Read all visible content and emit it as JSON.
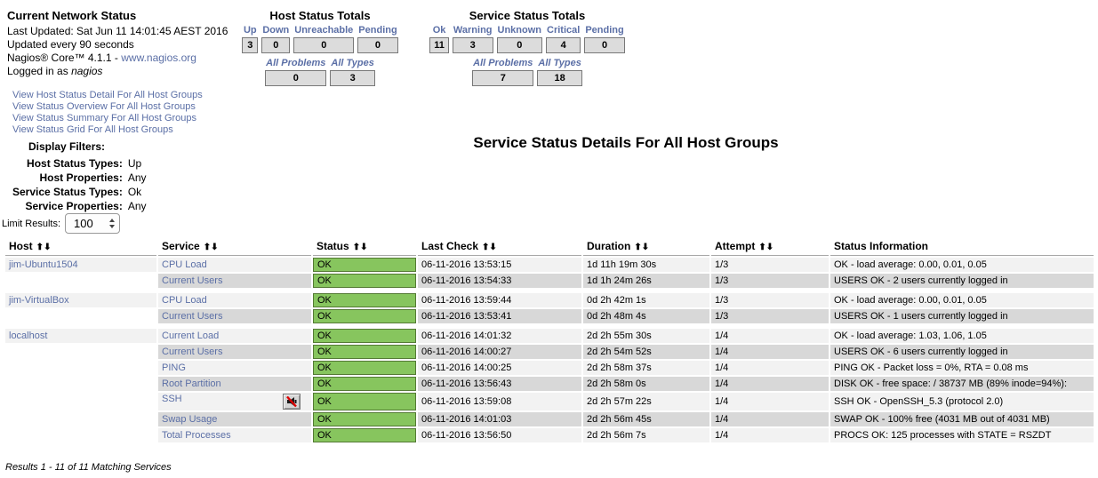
{
  "colors": {
    "link_blue": "#5b6fa6",
    "ok_green": "#87c55e",
    "warning_yellow": "#ffff00",
    "critical_red": "#f28a8a",
    "pending_gray": "#dcdcdc",
    "problems_blue": "#aac8f7",
    "stripe_odd": "#f2f2f2",
    "stripe_even": "#d8d8d8"
  },
  "icons": {
    "sort_up": "⬆",
    "sort_down": "⬇",
    "notifications_disabled": "red slash over speaker"
  },
  "network_status": {
    "title": "Current Network Status",
    "last_updated": "Last Updated: Sat Jun 11 14:01:45 AEST 2016",
    "update_interval": "Updated every 90 seconds",
    "version_prefix": "Nagios® Core™ 4.1.1 - ",
    "version_link": "www.nagios.org",
    "logged_in_prefix": "Logged in as ",
    "logged_in_user": "nagios",
    "links": [
      "View Host Status Detail For All Host Groups",
      "View Status Overview For All Host Groups",
      "View Status Summary For All Host Groups",
      "View Status Grid For All Host Groups"
    ]
  },
  "host_totals": {
    "title": "Host Status Totals",
    "columns": [
      {
        "label": "Up",
        "value": "3",
        "state": "ok"
      },
      {
        "label": "Down",
        "value": "0",
        "state": "neutral"
      },
      {
        "label": "Unreachable",
        "value": "0",
        "state": "neutral"
      },
      {
        "label": "Pending",
        "value": "0",
        "state": "neutral"
      }
    ],
    "summary": {
      "problems_label": "All Problems",
      "types_label": "All Types",
      "problems_value": "0",
      "problems_state": "neutral",
      "types_value": "3",
      "types_state": "neutral"
    }
  },
  "service_totals": {
    "title": "Service Status Totals",
    "columns": [
      {
        "label": "Ok",
        "value": "11",
        "state": "ok"
      },
      {
        "label": "Warning",
        "value": "3",
        "state": "warning"
      },
      {
        "label": "Unknown",
        "value": "0",
        "state": "neutral"
      },
      {
        "label": "Critical",
        "value": "4",
        "state": "critical"
      },
      {
        "label": "Pending",
        "value": "0",
        "state": "neutral"
      }
    ],
    "summary": {
      "problems_label": "All Problems",
      "types_label": "All Types",
      "problems_value": "7",
      "problems_state": "problems",
      "types_value": "18",
      "types_state": "neutral"
    }
  },
  "display_filters": {
    "title": "Display Filters:",
    "rows": [
      {
        "label": "Host Status Types:",
        "value": "Up"
      },
      {
        "label": "Host Properties:",
        "value": "Any"
      },
      {
        "label": "Service Status Types:",
        "value": "Ok"
      },
      {
        "label": "Service Properties:",
        "value": "Any"
      }
    ]
  },
  "limit_results": {
    "label": "Limit Results:",
    "value": "100"
  },
  "page_title": "Service Status Details For All Host Groups",
  "service_table": {
    "headers": [
      {
        "label": "Host",
        "sortable": true
      },
      {
        "label": "Service",
        "sortable": true
      },
      {
        "label": "Status",
        "sortable": true
      },
      {
        "label": "Last Check",
        "sortable": true
      },
      {
        "label": "Duration",
        "sortable": true
      },
      {
        "label": "Attempt",
        "sortable": true
      },
      {
        "label": "Status Information",
        "sortable": false
      }
    ],
    "groups": [
      {
        "host": "jim-Ubuntu1504",
        "rows": [
          {
            "service": "CPU Load",
            "status": "OK",
            "last_check": "06-11-2016 13:53:15",
            "duration": "1d 11h 19m 30s",
            "attempt": "1/3",
            "info": "OK - load average: 0.00, 0.01, 0.05"
          },
          {
            "service": "Current Users",
            "status": "OK",
            "last_check": "06-11-2016 13:54:33",
            "duration": "1d 1h 24m 26s",
            "attempt": "1/3",
            "info": "USERS OK - 2 users currently logged in"
          }
        ]
      },
      {
        "host": "jim-VirtualBox",
        "rows": [
          {
            "service": "CPU Load",
            "status": "OK",
            "last_check": "06-11-2016 13:59:44",
            "duration": "0d 2h 42m 1s",
            "attempt": "1/3",
            "info": "OK - load average: 0.00, 0.01, 0.05"
          },
          {
            "service": "Current Users",
            "status": "OK",
            "last_check": "06-11-2016 13:53:41",
            "duration": "0d 2h 48m 4s",
            "attempt": "1/3",
            "info": "USERS OK - 1 users currently logged in"
          }
        ]
      },
      {
        "host": "localhost",
        "rows": [
          {
            "service": "Current Load",
            "status": "OK",
            "last_check": "06-11-2016 14:01:32",
            "duration": "2d 2h 55m 30s",
            "attempt": "1/4",
            "info": "OK - load average: 1.03, 1.06, 1.05"
          },
          {
            "service": "Current Users",
            "status": "OK",
            "last_check": "06-11-2016 14:00:27",
            "duration": "2d 2h 54m 52s",
            "attempt": "1/4",
            "info": "USERS OK - 6 users currently logged in"
          },
          {
            "service": "PING",
            "status": "OK",
            "last_check": "06-11-2016 14:00:25",
            "duration": "2d 2h 58m 37s",
            "attempt": "1/4",
            "info": "PING OK - Packet loss = 0%, RTA = 0.08 ms"
          },
          {
            "service": "Root Partition",
            "status": "OK",
            "last_check": "06-11-2016 13:56:43",
            "duration": "2d 2h 58m 0s",
            "attempt": "1/4",
            "info": "DISK OK - free space: / 38737 MB (89% inode=94%):"
          },
          {
            "service": "SSH",
            "icon": "notifications-disabled",
            "status": "OK",
            "last_check": "06-11-2016 13:59:08",
            "duration": "2d 2h 57m 22s",
            "attempt": "1/4",
            "info": "SSH OK - OpenSSH_5.3 (protocol 2.0)"
          },
          {
            "service": "Swap Usage",
            "status": "OK",
            "last_check": "06-11-2016 14:01:03",
            "duration": "2d 2h 56m 45s",
            "attempt": "1/4",
            "info": "SWAP OK - 100% free (4031 MB out of 4031 MB)"
          },
          {
            "service": "Total Processes",
            "status": "OK",
            "last_check": "06-11-2016 13:56:50",
            "duration": "2d 2h 56m 7s",
            "attempt": "1/4",
            "info": "PROCS OK: 125 processes with STATE = RSZDT"
          }
        ]
      }
    ]
  },
  "results_note": "Results 1 - 11 of 11 Matching Services"
}
